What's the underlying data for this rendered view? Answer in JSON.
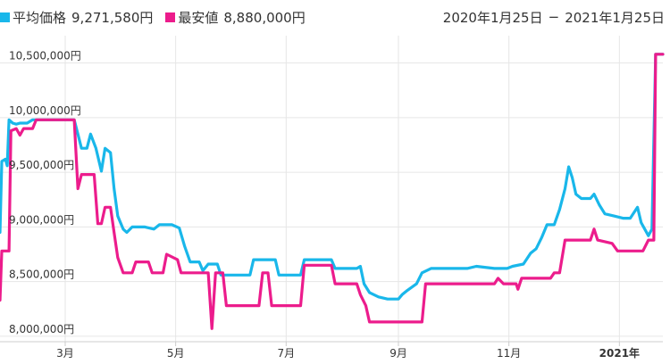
{
  "colors": {
    "average": "#19b7ea",
    "lowest": "#ec1c8c",
    "grid": "#e6e6e6",
    "text": "#333333"
  },
  "legend": [
    {
      "label": "平均価格",
      "value": "9,271,580円"
    },
    {
      "label": "最安値",
      "value": "8,880,000円"
    }
  ],
  "date_range": {
    "start": "2020年1月25日",
    "end": "2021年1月25日",
    "separator": "−"
  },
  "chart_data": {
    "type": "line",
    "title": "",
    "xlabel": "",
    "ylabel": "",
    "x_range": [
      "2020-01-25",
      "2021-01-25"
    ],
    "ylim": [
      7950000,
      10750000
    ],
    "grid": true,
    "legend_position": "top-left",
    "y_ticks": [
      {
        "value": 8000000,
        "label": "8,000,000円"
      },
      {
        "value": 8500000,
        "label": "8,500,000円"
      },
      {
        "value": 9000000,
        "label": "9,000,000円"
      },
      {
        "value": 9500000,
        "label": "9,500,000円"
      },
      {
        "value": 10000000,
        "label": "10,000,000円"
      },
      {
        "value": 10500000,
        "label": "10,500,000円"
      }
    ],
    "x_ticks": [
      {
        "date": "2020-03-01",
        "label": "3月",
        "bold": false
      },
      {
        "date": "2020-05-01",
        "label": "5月",
        "bold": false
      },
      {
        "date": "2020-07-01",
        "label": "7月",
        "bold": false
      },
      {
        "date": "2020-09-01",
        "label": "9月",
        "bold": false
      },
      {
        "date": "2020-11-01",
        "label": "11月",
        "bold": false
      },
      {
        "date": "2021-01-01",
        "label": "2021年",
        "bold": true
      }
    ],
    "series": [
      {
        "name": "平均価格",
        "color": "#19b7ea",
        "points": [
          [
            "2020-01-25",
            8950000
          ],
          [
            "2020-01-26",
            9600000
          ],
          [
            "2020-01-28",
            9620000
          ],
          [
            "2020-01-29",
            9560000
          ],
          [
            "2020-01-30",
            9980000
          ],
          [
            "2020-02-01",
            9950000
          ],
          [
            "2020-02-03",
            9940000
          ],
          [
            "2020-02-05",
            9950000
          ],
          [
            "2020-02-09",
            9950000
          ],
          [
            "2020-02-12",
            9980000
          ],
          [
            "2020-02-20",
            9980000
          ],
          [
            "2020-02-25",
            9980000
          ],
          [
            "2020-03-02",
            9980000
          ],
          [
            "2020-03-06",
            9980000
          ],
          [
            "2020-03-08",
            9850000
          ],
          [
            "2020-03-10",
            9720000
          ],
          [
            "2020-03-13",
            9720000
          ],
          [
            "2020-03-15",
            9850000
          ],
          [
            "2020-03-18",
            9720000
          ],
          [
            "2020-03-21",
            9510000
          ],
          [
            "2020-03-23",
            9720000
          ],
          [
            "2020-03-26",
            9680000
          ],
          [
            "2020-03-28",
            9350000
          ],
          [
            "2020-03-30",
            9100000
          ],
          [
            "2020-04-02",
            8980000
          ],
          [
            "2020-04-04",
            8950000
          ],
          [
            "2020-04-07",
            9000000
          ],
          [
            "2020-04-14",
            9000000
          ],
          [
            "2020-04-19",
            8980000
          ],
          [
            "2020-04-22",
            9020000
          ],
          [
            "2020-04-29",
            9020000
          ],
          [
            "2020-05-03",
            8990000
          ],
          [
            "2020-05-06",
            8820000
          ],
          [
            "2020-05-09",
            8680000
          ],
          [
            "2020-05-14",
            8680000
          ],
          [
            "2020-05-16",
            8600000
          ],
          [
            "2020-05-19",
            8660000
          ],
          [
            "2020-05-24",
            8660000
          ],
          [
            "2020-05-26",
            8560000
          ],
          [
            "2020-06-11",
            8560000
          ],
          [
            "2020-06-13",
            8700000
          ],
          [
            "2020-06-25",
            8700000
          ],
          [
            "2020-06-27",
            8560000
          ],
          [
            "2020-07-09",
            8560000
          ],
          [
            "2020-07-11",
            8700000
          ],
          [
            "2020-07-26",
            8700000
          ],
          [
            "2020-07-28",
            8620000
          ],
          [
            "2020-08-09",
            8620000
          ],
          [
            "2020-08-11",
            8640000
          ],
          [
            "2020-08-13",
            8480000
          ],
          [
            "2020-08-16",
            8400000
          ],
          [
            "2020-08-21",
            8360000
          ],
          [
            "2020-08-26",
            8340000
          ],
          [
            "2020-09-01",
            8340000
          ],
          [
            "2020-09-03",
            8380000
          ],
          [
            "2020-09-06",
            8420000
          ],
          [
            "2020-09-11",
            8480000
          ],
          [
            "2020-09-14",
            8580000
          ],
          [
            "2020-09-19",
            8620000
          ],
          [
            "2020-10-04",
            8620000
          ],
          [
            "2020-10-09",
            8620000
          ],
          [
            "2020-10-14",
            8640000
          ],
          [
            "2020-10-24",
            8620000
          ],
          [
            "2020-10-31",
            8620000
          ],
          [
            "2020-11-03",
            8640000
          ],
          [
            "2020-11-09",
            8660000
          ],
          [
            "2020-11-13",
            8760000
          ],
          [
            "2020-11-16",
            8800000
          ],
          [
            "2020-11-19",
            8900000
          ],
          [
            "2020-11-22",
            9020000
          ],
          [
            "2020-11-26",
            9020000
          ],
          [
            "2020-11-29",
            9160000
          ],
          [
            "2020-12-02",
            9350000
          ],
          [
            "2020-12-04",
            9550000
          ],
          [
            "2020-12-06",
            9450000
          ],
          [
            "2020-12-08",
            9300000
          ],
          [
            "2020-12-11",
            9260000
          ],
          [
            "2020-12-16",
            9260000
          ],
          [
            "2020-12-18",
            9300000
          ],
          [
            "2020-12-21",
            9200000
          ],
          [
            "2020-12-24",
            9120000
          ],
          [
            "2020-12-29",
            9100000
          ],
          [
            "2021-01-03",
            9080000
          ],
          [
            "2021-01-07",
            9080000
          ],
          [
            "2021-01-11",
            9180000
          ],
          [
            "2021-01-13",
            9040000
          ],
          [
            "2021-01-17",
            8920000
          ],
          [
            "2021-01-19",
            8980000
          ],
          [
            "2021-01-21",
            10580000
          ],
          [
            "2021-01-25",
            10580000
          ]
        ]
      },
      {
        "name": "最安値",
        "color": "#ec1c8c",
        "points": [
          [
            "2020-01-25",
            8330000
          ],
          [
            "2020-01-26",
            8780000
          ],
          [
            "2020-01-30",
            8780000
          ],
          [
            "2020-01-31",
            9880000
          ],
          [
            "2020-02-03",
            9900000
          ],
          [
            "2020-02-05",
            9840000
          ],
          [
            "2020-02-07",
            9900000
          ],
          [
            "2020-02-12",
            9900000
          ],
          [
            "2020-02-14",
            9980000
          ],
          [
            "2020-02-25",
            9980000
          ],
          [
            "2020-03-06",
            9980000
          ],
          [
            "2020-03-08",
            9350000
          ],
          [
            "2020-03-10",
            9480000
          ],
          [
            "2020-03-17",
            9480000
          ],
          [
            "2020-03-19",
            9030000
          ],
          [
            "2020-03-21",
            9030000
          ],
          [
            "2020-03-23",
            9180000
          ],
          [
            "2020-03-26",
            9180000
          ],
          [
            "2020-03-28",
            8950000
          ],
          [
            "2020-03-30",
            8720000
          ],
          [
            "2020-04-02",
            8580000
          ],
          [
            "2020-04-07",
            8580000
          ],
          [
            "2020-04-09",
            8680000
          ],
          [
            "2020-04-16",
            8680000
          ],
          [
            "2020-04-18",
            8580000
          ],
          [
            "2020-04-24",
            8580000
          ],
          [
            "2020-04-26",
            8750000
          ],
          [
            "2020-05-02",
            8700000
          ],
          [
            "2020-05-04",
            8580000
          ],
          [
            "2020-05-19",
            8580000
          ],
          [
            "2020-05-21",
            8070000
          ],
          [
            "2020-05-23",
            8580000
          ],
          [
            "2020-05-27",
            8580000
          ],
          [
            "2020-05-29",
            8280000
          ],
          [
            "2020-06-16",
            8280000
          ],
          [
            "2020-06-18",
            8580000
          ],
          [
            "2020-06-21",
            8580000
          ],
          [
            "2020-06-23",
            8280000
          ],
          [
            "2020-07-09",
            8280000
          ],
          [
            "2020-07-11",
            8650000
          ],
          [
            "2020-07-26",
            8650000
          ],
          [
            "2020-07-28",
            8480000
          ],
          [
            "2020-08-09",
            8480000
          ],
          [
            "2020-08-11",
            8380000
          ],
          [
            "2020-08-14",
            8280000
          ],
          [
            "2020-08-16",
            8130000
          ],
          [
            "2020-09-14",
            8130000
          ],
          [
            "2020-09-16",
            8480000
          ],
          [
            "2020-10-24",
            8480000
          ],
          [
            "2020-10-26",
            8530000
          ],
          [
            "2020-10-29",
            8480000
          ],
          [
            "2020-11-05",
            8480000
          ],
          [
            "2020-11-06",
            8430000
          ],
          [
            "2020-11-08",
            8530000
          ],
          [
            "2020-11-24",
            8530000
          ],
          [
            "2020-11-26",
            8580000
          ],
          [
            "2020-11-29",
            8580000
          ],
          [
            "2020-12-02",
            8880000
          ],
          [
            "2020-12-16",
            8880000
          ],
          [
            "2020-12-18",
            8980000
          ],
          [
            "2020-12-20",
            8880000
          ],
          [
            "2020-12-28",
            8850000
          ],
          [
            "2020-12-31",
            8780000
          ],
          [
            "2021-01-14",
            8780000
          ],
          [
            "2021-01-17",
            8880000
          ],
          [
            "2021-01-20",
            8880000
          ],
          [
            "2021-01-21",
            10580000
          ],
          [
            "2021-01-25",
            10580000
          ]
        ]
      }
    ]
  }
}
